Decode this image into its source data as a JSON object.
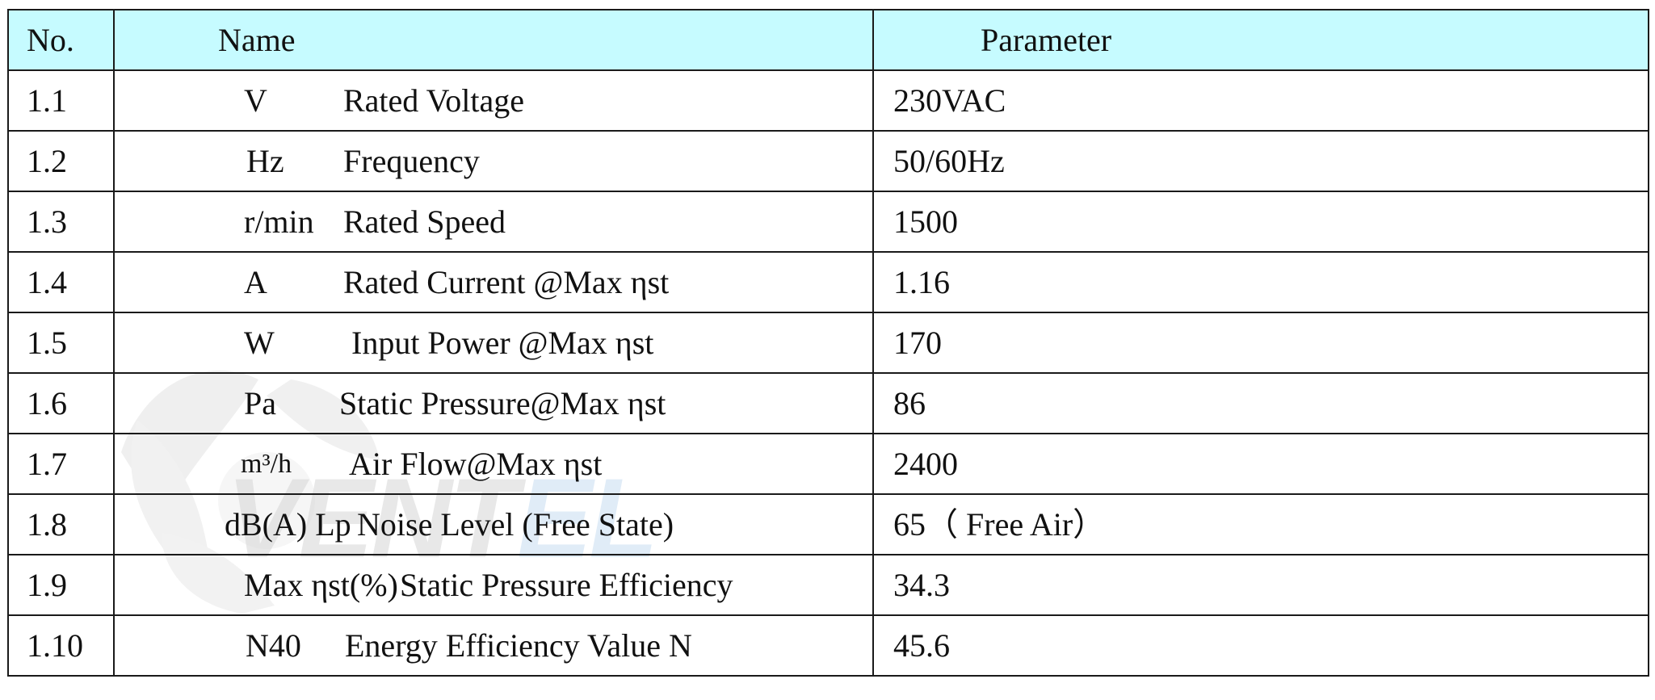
{
  "header": {
    "no": "No.",
    "name": "Name",
    "parameter": "Parameter"
  },
  "rows": [
    {
      "no": "1.1",
      "symbol": "V",
      "description": "Rated Voltage",
      "value": "230VAC"
    },
    {
      "no": "1.2",
      "symbol": "Hz",
      "description": "Frequency",
      "value": "50/60Hz"
    },
    {
      "no": "1.3",
      "symbol": "r/min",
      "description": "Rated Speed",
      "value": "1500"
    },
    {
      "no": "1.4",
      "symbol": "A",
      "description": "Rated Current @Max ηst",
      "value": "1.16"
    },
    {
      "no": "1.5",
      "symbol": "W",
      "description": "Input Power @Max ηst",
      "value": "170"
    },
    {
      "no": "1.6",
      "symbol": "Pa",
      "description": "Static Pressure@Max ηst",
      "value": "86"
    },
    {
      "no": "1.7",
      "symbol": "m³/h",
      "description": "Air Flow@Max ηst",
      "value": "2400"
    },
    {
      "no": "1.8",
      "symbol": "dB(A) Lp",
      "description": "Noise Level (Free State)",
      "value": "65（ Free Air）"
    },
    {
      "no": "1.9",
      "symbol": "Max ηst(%)",
      "description": "Static Pressure Efficiency",
      "value": "34.3"
    },
    {
      "no": "1.10",
      "symbol": "N40",
      "description": "Energy Efficiency Value N",
      "value": "45.6"
    }
  ],
  "watermark": {
    "text": "VENTEL",
    "icon": "fan-blade-icon",
    "colors": [
      "#d9d9d9",
      "#cfe3f5"
    ]
  },
  "colors": {
    "header_bg": "#c6fbff",
    "border": "#1a1a1a"
  }
}
